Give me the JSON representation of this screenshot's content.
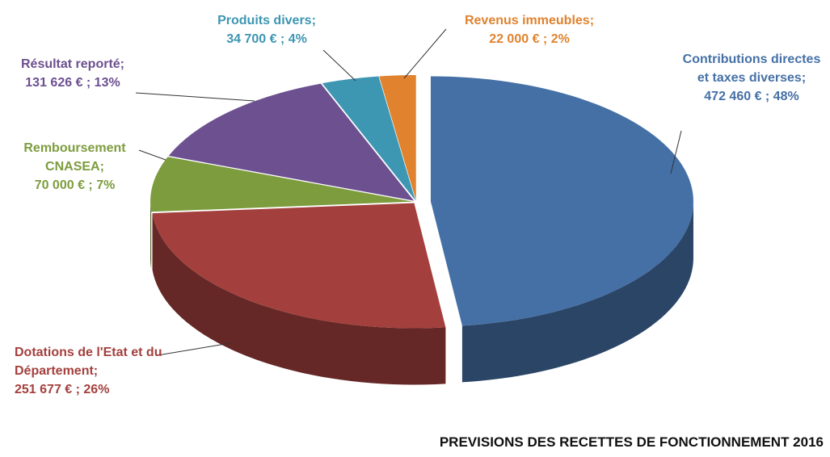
{
  "chart_data": {
    "type": "pie",
    "title": "PREVISIONS DES RECETTES DE FONCTIONNEMENT 2016",
    "categories": [
      "Contributions directes et taxes diverses;",
      "Dotations de l'Etat et du Département;",
      "Remboursement CNASEA;",
      "Résultat reporté;",
      "Produits divers;",
      "Revenus immeubles;"
    ],
    "values": [
      472460,
      251677,
      70000,
      131626,
      34700,
      22000
    ],
    "value_labels": [
      "472 460 € ; 48%",
      "251 677 € ; 26%",
      "70 000 € ; 7%",
      "131 626 € ; 13%",
      "34 700 € ; 4%",
      "22 000 € ; 2%"
    ],
    "colors": [
      "#4570a6",
      "#a3403d",
      "#7d9c3e",
      "#6c5090",
      "#3d96b2",
      "#e0822e"
    ]
  }
}
